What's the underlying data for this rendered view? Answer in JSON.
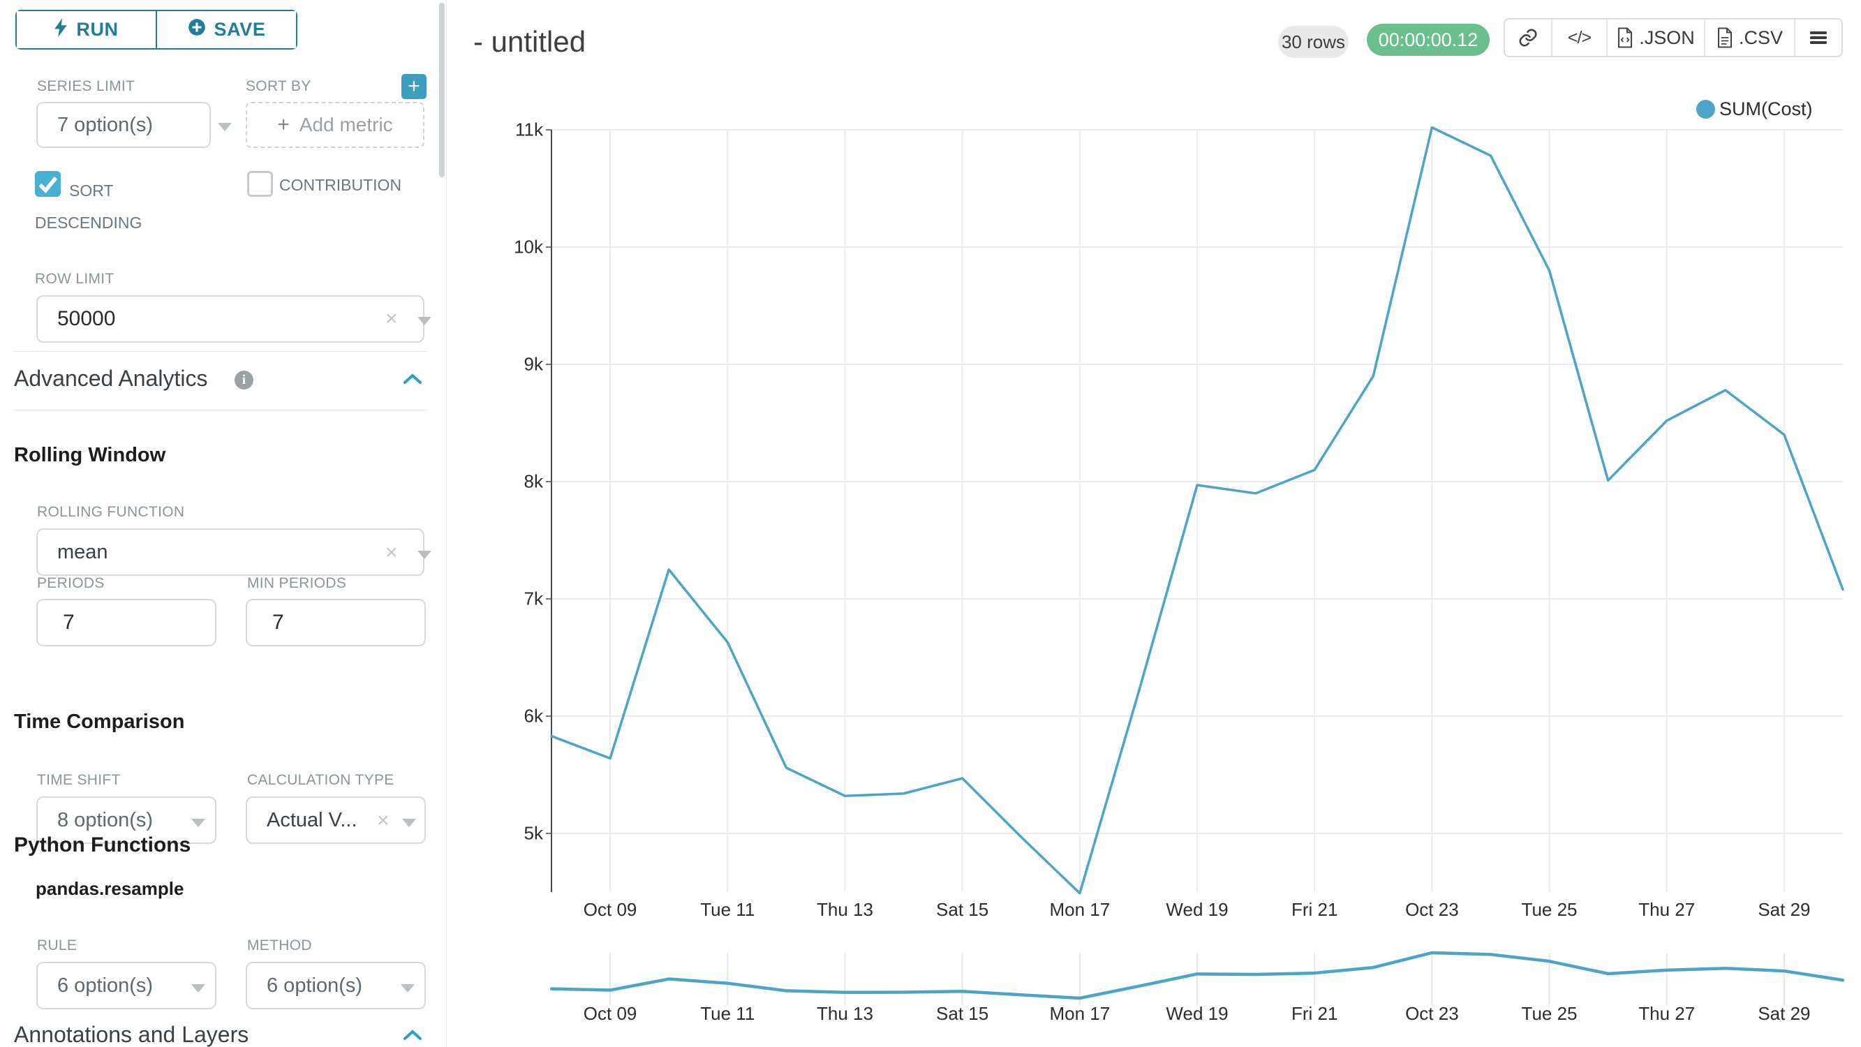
{
  "colors": {
    "accent_teal": "#217d98",
    "plus_button_teal": "#3d9ec0",
    "checkbox_teal": "#47b1d3",
    "line_blue": "#4da4c7",
    "badge_green": "#6abf8c",
    "badge_gray": "#e9e9e9"
  },
  "sidebar": {
    "run_label": "RUN",
    "save_label": "SAVE",
    "series_limit": {
      "label": "SERIES LIMIT",
      "value": "7 option(s)"
    },
    "sort_by": {
      "label": "SORT BY",
      "placeholder": "Add metric"
    },
    "sort_descending": {
      "label": "SORT DESCENDING",
      "checked": true
    },
    "contribution": {
      "label": "CONTRIBUTION",
      "checked": false
    },
    "row_limit": {
      "label": "ROW LIMIT",
      "value": "50000"
    },
    "advanced_analytics": {
      "title": "Advanced Analytics"
    },
    "rolling_window": {
      "title": "Rolling Window",
      "rolling_function": {
        "label": "ROLLING FUNCTION",
        "value": "mean"
      },
      "periods": {
        "label": "PERIODS",
        "value": "7"
      },
      "min_periods": {
        "label": "MIN PERIODS",
        "value": "7"
      }
    },
    "time_comparison": {
      "title": "Time Comparison",
      "time_shift": {
        "label": "TIME SHIFT",
        "value": "8 option(s)"
      },
      "calculation_type": {
        "label": "CALCULATION TYPE",
        "value": "Actual V..."
      }
    },
    "python_functions": {
      "title": "Python Functions",
      "subtitle": "pandas.resample",
      "rule": {
        "label": "RULE",
        "value": "6 option(s)"
      },
      "method": {
        "label": "METHOD",
        "value": "6 option(s)"
      }
    },
    "annotations": {
      "title": "Annotations and Layers"
    }
  },
  "header": {
    "title": "- untitled",
    "rows_badge": "30 rows",
    "timer_badge": "00:00:00.12",
    "export_json_label": ".JSON",
    "export_csv_label": ".CSV"
  },
  "chart_data": {
    "type": "line",
    "title": "- untitled",
    "grid": true,
    "legend_position": "top-right",
    "legend": [
      {
        "name": "SUM(Cost)",
        "color": "#4da4c7"
      }
    ],
    "x": [
      "Oct 08",
      "Oct 09",
      "Oct 10",
      "Oct 11",
      "Oct 12",
      "Oct 13",
      "Oct 14",
      "Oct 15",
      "Oct 16",
      "Oct 17",
      "Oct 18",
      "Oct 19",
      "Oct 20",
      "Oct 21",
      "Oct 22",
      "Oct 23",
      "Oct 24",
      "Oct 25",
      "Oct 26",
      "Oct 27",
      "Oct 28",
      "Oct 29",
      "Oct 30"
    ],
    "series": [
      {
        "name": "SUM(Cost)",
        "values": [
          5830,
          5640,
          7250,
          6630,
          5560,
          5320,
          5340,
          5470,
          4970,
          4490,
          6200,
          7970,
          7900,
          8100,
          8900,
          11020,
          10780,
          9800,
          8010,
          8520,
          8780,
          8400,
          7080
        ]
      }
    ],
    "x_ticks": [
      {
        "index": 1,
        "label": "Oct 09"
      },
      {
        "index": 3,
        "label": "Tue 11"
      },
      {
        "index": 5,
        "label": "Thu 13"
      },
      {
        "index": 7,
        "label": "Sat 15"
      },
      {
        "index": 9,
        "label": "Mon 17"
      },
      {
        "index": 11,
        "label": "Wed 19"
      },
      {
        "index": 13,
        "label": "Fri 21"
      },
      {
        "index": 15,
        "label": "Oct 23"
      },
      {
        "index": 17,
        "label": "Tue 25"
      },
      {
        "index": 19,
        "label": "Thu 27"
      },
      {
        "index": 21,
        "label": "Sat 29"
      }
    ],
    "y_ticks": [
      {
        "value": 11000,
        "label": "11k"
      },
      {
        "value": 10000,
        "label": "10k"
      },
      {
        "value": 9000,
        "label": "9k"
      },
      {
        "value": 8000,
        "label": "8k"
      },
      {
        "value": 7000,
        "label": "7k"
      },
      {
        "value": 6000,
        "label": "6k"
      },
      {
        "value": 5000,
        "label": "5k"
      }
    ],
    "ylim": [
      4400,
      11000
    ],
    "has_preview_strip": true
  }
}
